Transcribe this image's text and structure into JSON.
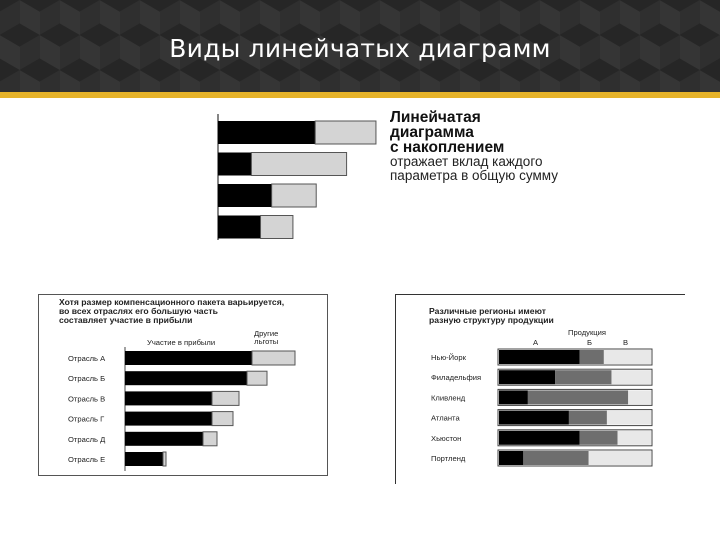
{
  "slide": {
    "title": "Виды линейчатых диаграмм"
  },
  "stacked_caption": {
    "title_line1": "Линейчатая",
    "title_line2": "диаграмма",
    "title_line3": "с накоплением",
    "desc_line1": "отражает вклад каждого",
    "desc_line2": "параметра в общую сумму"
  },
  "colors": {
    "header_bg": "#2f2f2f",
    "accent_line": "#e6b32a",
    "series_dark": "#000000",
    "series_light": "#d4d4d4",
    "series_mid": "#6e6e6e"
  },
  "chart_data": [
    {
      "type": "bar",
      "orientation": "horizontal",
      "stacked": true,
      "categories": [
        "",
        "",
        "",
        ""
      ],
      "series": [
        {
          "values": [
            96,
            33,
            53,
            42
          ]
        },
        {
          "values": [
            60,
            94,
            44,
            32
          ]
        }
      ],
      "xlim": [
        0,
        160
      ]
    },
    {
      "type": "bar",
      "orientation": "horizontal",
      "stacked": true,
      "title_line1": "Хотя размер компенсационного пакета варьируется,",
      "title_line2": "во всех отраслях его большую часть",
      "title_line3": "составляет участие в прибыли",
      "categories": [
        "Отрасль А",
        "Отрасль Б",
        "Отрасль В",
        "Отрасль Г",
        "Отрасль Д",
        "Отрасль Е"
      ],
      "series": [
        {
          "name": "Участие в прибыли",
          "values": [
            127,
            122,
            87,
            87,
            78,
            38
          ]
        },
        {
          "name_line1": "Другие",
          "name_line2": "льготы",
          "values": [
            43,
            20,
            27,
            21,
            14,
            3
          ]
        }
      ],
      "xlim": [
        0,
        170
      ]
    },
    {
      "type": "bar",
      "orientation": "horizontal",
      "stacked": true,
      "percent": true,
      "title_line1": "Различные регионы имеют",
      "title_line2": "разную структуру продукции",
      "legend_title": "Продукция",
      "categories": [
        "Нью-Йорк",
        "Филадельфия",
        "Кливленд",
        "Атланта",
        "Хьюстон",
        "Портленд"
      ],
      "series": [
        {
          "name": "А",
          "values": [
            53,
            37,
            19,
            46,
            53,
            16
          ]
        },
        {
          "name": "Б",
          "values": [
            16,
            37,
            66,
            25,
            25,
            43
          ]
        },
        {
          "name": "В",
          "values": [
            31,
            26,
            15,
            29,
            22,
            41
          ]
        }
      ],
      "xlim": [
        0,
        100
      ]
    }
  ]
}
